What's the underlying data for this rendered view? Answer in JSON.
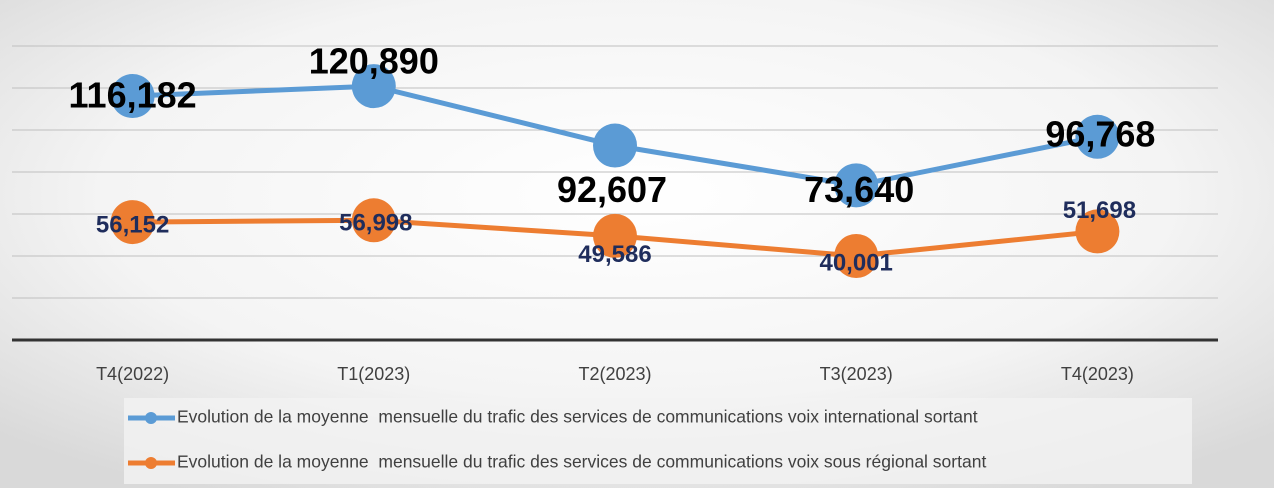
{
  "chart_data": {
    "type": "line",
    "categories": [
      "T4(2022)",
      "T1(2023)",
      "T2(2023)",
      "T3(2023)",
      "T4(2023)"
    ],
    "series": [
      {
        "name": "Evolution de la moyenne  mensuelle du trafic des services de communications voix international sortant",
        "color": "#5b9bd5",
        "values": [
          116182,
          120890,
          92607,
          73640,
          96768
        ],
        "value_labels": [
          "116,182",
          "120,890",
          "92,607",
          "73,640",
          "96,768"
        ]
      },
      {
        "name": "Evolution de la moyenne  mensuelle du trafic des services de communications voix sous régional sortant",
        "color": "#ed7d31",
        "values": [
          56152,
          56998,
          49586,
          40001,
          51698
        ],
        "value_labels": [
          "56,152",
          "56,998",
          "49,586",
          "40,001",
          "51,698"
        ]
      }
    ],
    "ylim": [
      0,
      140000
    ],
    "yticks": [
      0,
      20000,
      40000,
      60000,
      80000,
      100000,
      120000,
      140000
    ],
    "grid": true,
    "legend": "bottom"
  }
}
